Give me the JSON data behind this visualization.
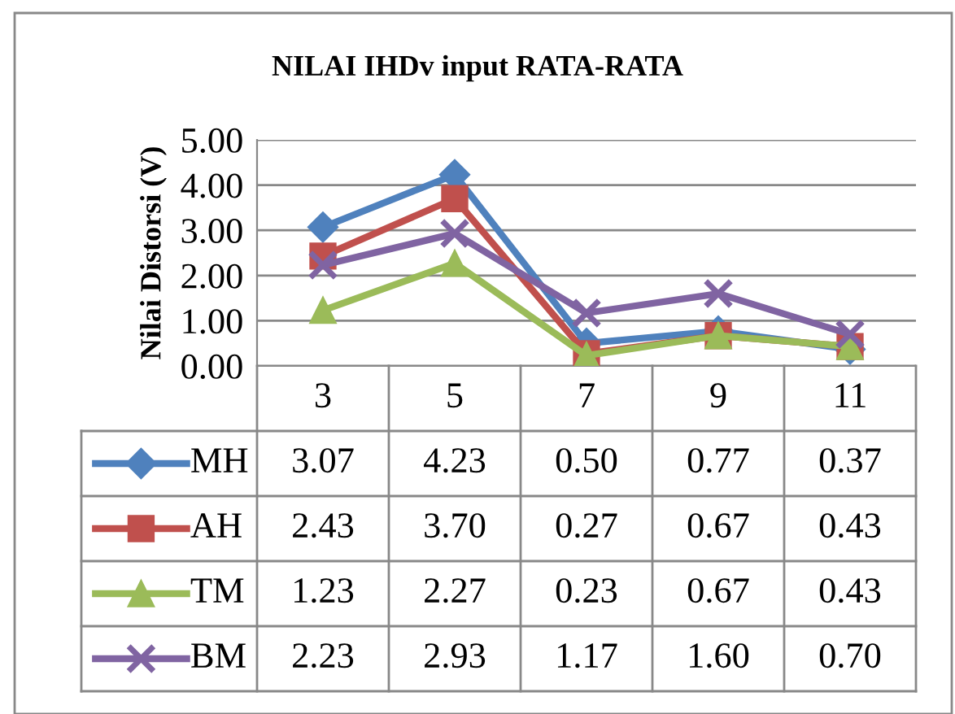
{
  "chart_data": {
    "type": "line",
    "title": "NILAI IHDv input RATA-RATA",
    "ylabel": "Nilai Distorsi (V)",
    "categories": [
      "3",
      "5",
      "7",
      "9",
      "11"
    ],
    "series": [
      {
        "name": "MH",
        "color": "#4f81bd",
        "marker": "diamond",
        "values": [
          3.07,
          4.23,
          0.5,
          0.77,
          0.37
        ],
        "value_labels": [
          "3.07",
          "4.23",
          "0.50",
          "0.77",
          "0.37"
        ]
      },
      {
        "name": "AH",
        "color": "#c0504d",
        "marker": "square",
        "values": [
          2.43,
          3.7,
          0.27,
          0.67,
          0.43
        ],
        "value_labels": [
          "2.43",
          "3.70",
          "0.27",
          "0.67",
          "0.43"
        ]
      },
      {
        "name": "TM",
        "color": "#9bbb59",
        "marker": "triangle",
        "values": [
          1.23,
          2.27,
          0.23,
          0.67,
          0.43
        ],
        "value_labels": [
          "1.23",
          "2.27",
          "0.23",
          "0.67",
          "0.43"
        ]
      },
      {
        "name": "BM",
        "color": "#8064a2",
        "marker": "cross",
        "values": [
          2.23,
          2.93,
          1.17,
          1.6,
          0.7
        ],
        "value_labels": [
          "2.23",
          "2.93",
          "1.17",
          "1.60",
          "0.70"
        ]
      }
    ],
    "ylim": [
      0,
      5
    ],
    "yticks": [
      {
        "value": 0,
        "label": "0.00"
      },
      {
        "value": 1,
        "label": "1.00"
      },
      {
        "value": 2,
        "label": "2.00"
      },
      {
        "value": 3,
        "label": "3.00"
      },
      {
        "value": 4,
        "label": "4.00"
      },
      {
        "value": 5,
        "label": "5.00"
      }
    ],
    "grid": "y",
    "legend": "bottom",
    "line_style": "solid"
  }
}
